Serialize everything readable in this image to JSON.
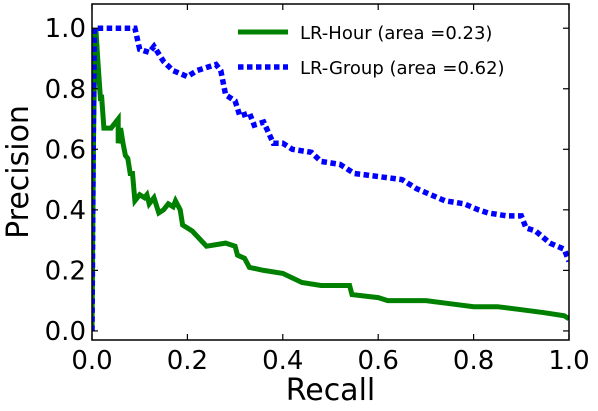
{
  "chart_data": {
    "type": "line",
    "xlabel": "Recall",
    "ylabel": "Precision",
    "xlim": [
      0,
      1
    ],
    "ylim": [
      -0.03,
      1.08
    ],
    "xticks": [
      0,
      0.2,
      0.4,
      0.6,
      0.8,
      1
    ],
    "xtick_labels": [
      "0.0",
      "0.2",
      "0.4",
      "0.6",
      "0.8",
      "1.0"
    ],
    "yticks": [
      0,
      0.2,
      0.4,
      0.6,
      0.8,
      1
    ],
    "ytick_labels": [
      "0.0",
      "0.2",
      "0.4",
      "0.6",
      "0.8",
      "1.0"
    ],
    "grid": false,
    "legend_position": "top-right",
    "series": [
      {
        "name": "LR-Hour (area =0.23)",
        "color": "#008000",
        "style": "solid",
        "points": [
          [
            0,
            0
          ],
          [
            0.003,
            0.6
          ],
          [
            0.006,
            0.97
          ],
          [
            0.008,
            1.0
          ],
          [
            0.012,
            0.9
          ],
          [
            0.018,
            0.76
          ],
          [
            0.02,
            0.78
          ],
          [
            0.025,
            0.67
          ],
          [
            0.04,
            0.67
          ],
          [
            0.055,
            0.7
          ],
          [
            0.055,
            0.62
          ],
          [
            0.06,
            0.67
          ],
          [
            0.065,
            0.62
          ],
          [
            0.07,
            0.58
          ],
          [
            0.075,
            0.57
          ],
          [
            0.08,
            0.52
          ],
          [
            0.085,
            0.52
          ],
          [
            0.09,
            0.43
          ],
          [
            0.1,
            0.45
          ],
          [
            0.11,
            0.44
          ],
          [
            0.115,
            0.45
          ],
          [
            0.12,
            0.42
          ],
          [
            0.13,
            0.44
          ],
          [
            0.14,
            0.39
          ],
          [
            0.15,
            0.4
          ],
          [
            0.16,
            0.42
          ],
          [
            0.17,
            0.41
          ],
          [
            0.175,
            0.43
          ],
          [
            0.185,
            0.4
          ],
          [
            0.19,
            0.35
          ],
          [
            0.21,
            0.33
          ],
          [
            0.24,
            0.28
          ],
          [
            0.28,
            0.29
          ],
          [
            0.3,
            0.28
          ],
          [
            0.305,
            0.25
          ],
          [
            0.32,
            0.24
          ],
          [
            0.33,
            0.21
          ],
          [
            0.36,
            0.2
          ],
          [
            0.4,
            0.19
          ],
          [
            0.44,
            0.16
          ],
          [
            0.48,
            0.15
          ],
          [
            0.54,
            0.15
          ],
          [
            0.545,
            0.12
          ],
          [
            0.6,
            0.11
          ],
          [
            0.62,
            0.1
          ],
          [
            0.7,
            0.1
          ],
          [
            0.75,
            0.09
          ],
          [
            0.8,
            0.08
          ],
          [
            0.85,
            0.08
          ],
          [
            0.9,
            0.07
          ],
          [
            0.95,
            0.06
          ],
          [
            0.99,
            0.05
          ],
          [
            1.0,
            0.04
          ]
        ]
      },
      {
        "name": "LR-Group (area =0.62)",
        "color": "#0000ff",
        "style": "dotted",
        "points": [
          [
            0,
            0
          ],
          [
            0.003,
            0.7
          ],
          [
            0.005,
            1.0
          ],
          [
            0.09,
            1.0
          ],
          [
            0.1,
            0.93
          ],
          [
            0.12,
            0.92
          ],
          [
            0.13,
            0.94
          ],
          [
            0.15,
            0.89
          ],
          [
            0.17,
            0.86
          ],
          [
            0.2,
            0.84
          ],
          [
            0.22,
            0.86
          ],
          [
            0.26,
            0.88
          ],
          [
            0.27,
            0.86
          ],
          [
            0.28,
            0.78
          ],
          [
            0.3,
            0.76
          ],
          [
            0.31,
            0.71
          ],
          [
            0.33,
            0.72
          ],
          [
            0.34,
            0.68
          ],
          [
            0.36,
            0.69
          ],
          [
            0.38,
            0.62
          ],
          [
            0.4,
            0.62
          ],
          [
            0.42,
            0.6
          ],
          [
            0.46,
            0.59
          ],
          [
            0.48,
            0.56
          ],
          [
            0.52,
            0.55
          ],
          [
            0.55,
            0.52
          ],
          [
            0.6,
            0.51
          ],
          [
            0.65,
            0.5
          ],
          [
            0.67,
            0.48
          ],
          [
            0.68,
            0.47
          ],
          [
            0.71,
            0.45
          ],
          [
            0.74,
            0.43
          ],
          [
            0.78,
            0.42
          ],
          [
            0.81,
            0.4
          ],
          [
            0.83,
            0.39
          ],
          [
            0.87,
            0.38
          ],
          [
            0.9,
            0.38
          ],
          [
            0.91,
            0.34
          ],
          [
            0.93,
            0.33
          ],
          [
            0.96,
            0.29
          ],
          [
            0.99,
            0.27
          ],
          [
            1.0,
            0.23
          ]
        ]
      }
    ]
  }
}
